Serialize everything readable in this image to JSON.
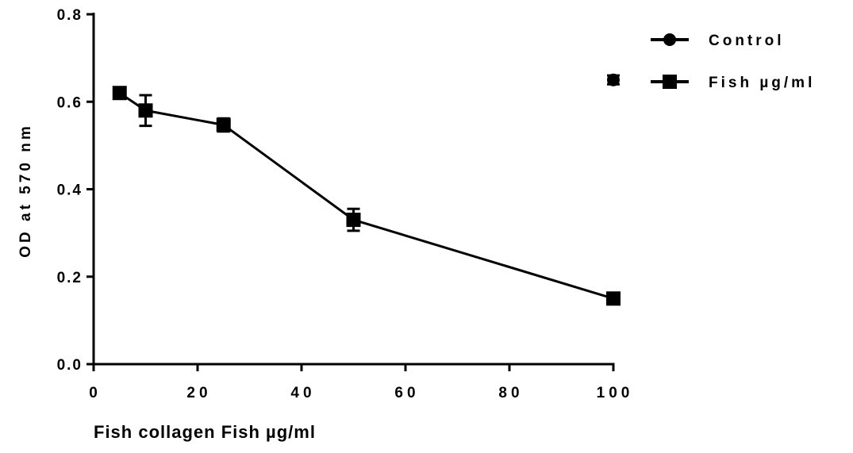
{
  "chart_data": {
    "type": "line",
    "x_label": "Fish collagen Fish µg/ml",
    "y_label": "OD at 570 nm",
    "xlim": [
      0,
      100
    ],
    "xticks": [
      0,
      20,
      40,
      60,
      80,
      100
    ],
    "ylim": [
      0,
      0.8
    ],
    "yticks": [
      {
        "value": 0,
        "label": "0.0"
      },
      0.2,
      0.4,
      0.6,
      0.8
    ],
    "legend": "upper right",
    "series": [
      {
        "name": "Control",
        "color": "#000000",
        "marker": "circle",
        "line": false,
        "x": [
          100
        ],
        "values": [
          0.65
        ],
        "errors": [
          0.01
        ]
      },
      {
        "name": "Fish µg/ml",
        "color": "#000000",
        "marker": "square",
        "line": true,
        "x": [
          5,
          10,
          25,
          50,
          100
        ],
        "values": [
          0.62,
          0.58,
          0.547,
          0.33,
          0.15
        ],
        "errors": [
          0.01,
          0.035,
          0.015,
          0.025,
          0.005
        ]
      }
    ]
  }
}
